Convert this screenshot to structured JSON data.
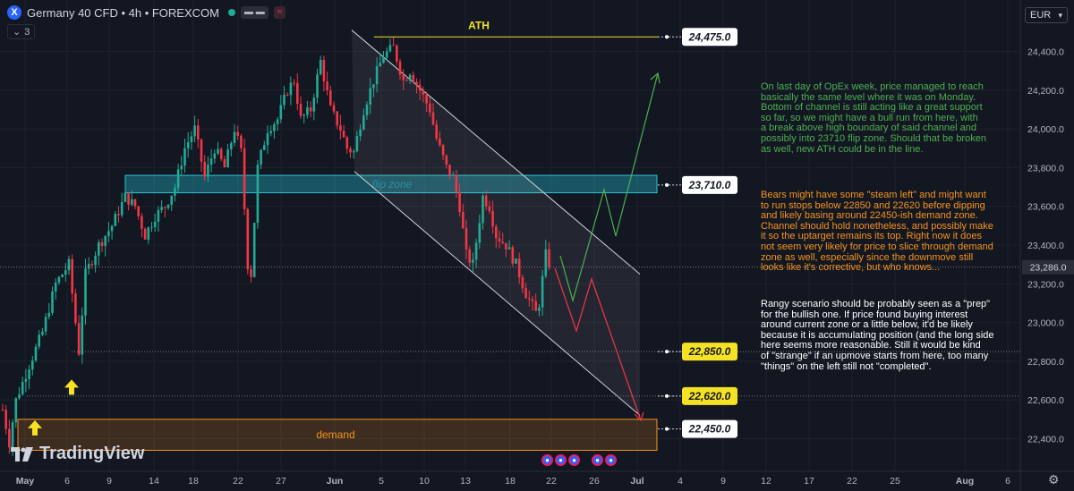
{
  "header": {
    "symbol_letter": "X",
    "title": "Germany 40 CFD • 4h • FOREXCOM",
    "badge1": "▬ ▬",
    "badge2": "≈",
    "indicator": "3",
    "indicator_icon": "chevron-down-icon",
    "currency": "EUR"
  },
  "brand": {
    "name": "TradingView"
  },
  "colors": {
    "up": "#22ab94",
    "down": "#f23645",
    "bg": "#131722",
    "grid": "#1e222d",
    "yellow": "#f5e225",
    "cyan": "#26c6da",
    "orange": "#f7931a",
    "green": "#4caf50",
    "red": "#f23645"
  },
  "chart_data": {
    "type": "candlestick",
    "ylim": [
      22240,
      24560
    ],
    "yticks": [
      22400,
      22600,
      22800,
      23000,
      23200,
      23400,
      23600,
      23800,
      24000,
      24200,
      24400
    ],
    "ytick_labels": [
      "22,400.0",
      "22,600.0",
      "22,800.0",
      "23,000.0",
      "23,200.0",
      "23,400.0",
      "23,600.0",
      "23,800.0",
      "24,000.0",
      "24,200.0",
      "24,400.0"
    ],
    "x_ticks": [
      "May",
      "6",
      "9",
      "14",
      "18",
      "22",
      "27",
      "Jun",
      "5",
      "10",
      "13",
      "18",
      "22",
      "26",
      "Jul",
      "4",
      "9",
      "12",
      "17",
      "22",
      "25",
      "Aug",
      "6"
    ],
    "last_price": 23286,
    "last_price_label": "23,286.0",
    "close_path": [
      [
        0,
        22550
      ],
      [
        2,
        22380
      ],
      [
        4,
        22600
      ],
      [
        8,
        22780
      ],
      [
        12,
        22950
      ],
      [
        16,
        23200
      ],
      [
        20,
        23300
      ],
      [
        23,
        22850
      ],
      [
        25,
        23250
      ],
      [
        29,
        23400
      ],
      [
        33,
        23500
      ],
      [
        37,
        23650
      ],
      [
        40,
        23600
      ],
      [
        43,
        23450
      ],
      [
        46,
        23550
      ],
      [
        49,
        23600
      ],
      [
        52,
        23700
      ],
      [
        55,
        23900
      ],
      [
        58,
        24000
      ],
      [
        61,
        23750
      ],
      [
        64,
        23900
      ],
      [
        67,
        23800
      ],
      [
        70,
        24000
      ],
      [
        72,
        23880
      ],
      [
        74,
        23300
      ],
      [
        75,
        23250
      ],
      [
        77,
        23800
      ],
      [
        80,
        24000
      ],
      [
        83,
        24050
      ],
      [
        86,
        24200
      ],
      [
        88,
        24250
      ],
      [
        90,
        24050
      ],
      [
        93,
        24100
      ],
      [
        96,
        24350
      ],
      [
        99,
        24100
      ],
      [
        102,
        24000
      ],
      [
        104,
        23900
      ],
      [
        106,
        23880
      ],
      [
        109,
        24100
      ],
      [
        112,
        24250
      ],
      [
        115,
        24380
      ],
      [
        118,
        24420
      ],
      [
        121,
        24250
      ],
      [
        123,
        24300
      ],
      [
        126,
        24200
      ],
      [
        129,
        24100
      ],
      [
        131,
        23950
      ],
      [
        134,
        23800
      ],
      [
        136,
        23750
      ],
      [
        138,
        23600
      ],
      [
        140,
        23350
      ],
      [
        142,
        23300
      ],
      [
        145,
        23650
      ],
      [
        147,
        23600
      ],
      [
        149,
        23450
      ],
      [
        152,
        23400
      ],
      [
        155,
        23300
      ],
      [
        158,
        23150
      ],
      [
        161,
        23050
      ],
      [
        162,
        23100
      ],
      [
        164,
        23350
      ],
      [
        165,
        23290
      ]
    ],
    "levels": [
      {
        "label": "24,475.0",
        "value": 24475
      },
      {
        "label": "23,710.0",
        "value": 23710
      },
      {
        "label": "22,850.0",
        "value": 22850
      },
      {
        "label": "22,620.0",
        "value": 22620
      },
      {
        "label": "22,450.0",
        "value": 22450
      }
    ],
    "annotations": {
      "ath": "ATH",
      "flip_zone": "flip zone",
      "demand": "demand"
    }
  },
  "notes": {
    "green": "On last day of OpEx week, price managed to reach\nbasically the same level where it was on Monday.\nBottom of channel is still acting like a great support\nso far, so we might have a bull run from here, with\na break above high boundary of said channel and\npossibly into 23710 flip zone. Should that be broken\nas well, new ATH could be in the line.",
    "orange": "Bears might have some \"steam left\" and might want\nto run stops below 22850 and 22620 before dipping\nand likely basing around 22450-ish demand zone.\nChannel should hold nonetheless, and possibly make\nit so the uptarget remains its top. Right now it does\nnot seem very likely for price to slice through demand\nzone as well, especially since the downmove still\nlooks like it's corrective, but who knows...",
    "white": "Rangy scenario should be probably seen as a \"prep\"\nfor the bullish one. If price found buying interest\naround current zone or a little below, it'd be likely\nbecause it is accumulating position (and the long side\nhere seems more reasonable. Still it would be kind\nof \"strange\" if an upmove starts from here, too many\n\"things\" on the left still not \"completed\"."
  }
}
